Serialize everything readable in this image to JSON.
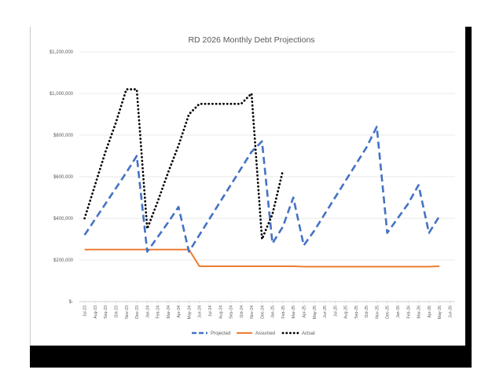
{
  "chart_data": {
    "type": "line",
    "title": "RD 2026 Monthly Debt Projections",
    "xlabel": "",
    "ylabel": "",
    "ylim": [
      0,
      1200000
    ],
    "y_ticks": [
      0,
      200000,
      400000,
      600000,
      800000,
      1000000,
      1200000
    ],
    "y_tick_labels": [
      "$-",
      "$200,000",
      "$400,000",
      "$600,000",
      "$800,000",
      "$1,000,000",
      "$1,200,000"
    ],
    "grid": true,
    "legend_position": "bottom",
    "categories": [
      "Jul-23",
      "Aug-23",
      "Sep-23",
      "Oct-23",
      "Nov-23",
      "Dec-23",
      "Jan-24",
      "Feb-24",
      "Mar-24",
      "Apr-24",
      "May-24",
      "Jun-24",
      "Jul-24",
      "Aug-24",
      "Sep-24",
      "Oct-24",
      "Nov-24",
      "Dec-24",
      "Jan-25",
      "Feb-25",
      "Mar-25",
      "Apr-25",
      "May-25",
      "Jun-25",
      "Jul-25",
      "Aug-25",
      "Sep-25",
      "Oct-25",
      "Nov-25",
      "Dec-25",
      "Jan-26",
      "Feb-26",
      "Mar-26",
      "Apr-26",
      "May-26",
      "Jun-26"
    ],
    "series": [
      {
        "name": "Projected",
        "color": "#4472c4",
        "style": "dashed",
        "values": [
          320000,
          395000,
          470000,
          545000,
          620000,
          700000,
          240000,
          310000,
          380000,
          455000,
          240000,
          320000,
          400000,
          480000,
          560000,
          640000,
          720000,
          770000,
          280000,
          360000,
          500000,
          270000,
          340000,
          420000,
          500000,
          580000,
          660000,
          740000,
          840000,
          330000,
          400000,
          470000,
          560000,
          330000,
          410000,
          null
        ]
      },
      {
        "name": "Assumed",
        "color": "#ed7d31",
        "style": "solid",
        "values": [
          250000,
          250000,
          250000,
          250000,
          250000,
          250000,
          250000,
          250000,
          250000,
          250000,
          250000,
          170000,
          170000,
          170000,
          170000,
          170000,
          170000,
          170000,
          170000,
          170000,
          170000,
          168000,
          168000,
          168000,
          168000,
          168000,
          168000,
          168000,
          168000,
          168000,
          168000,
          168000,
          168000,
          168000,
          170000,
          null
        ]
      },
      {
        "name": "Actual",
        "color": "#000000",
        "style": "dotted",
        "values": [
          400000,
          560000,
          720000,
          860000,
          1020000,
          1020000,
          350000,
          480000,
          620000,
          750000,
          900000,
          950000,
          950000,
          950000,
          950000,
          950000,
          1000000,
          300000,
          420000,
          630000,
          null,
          null,
          null,
          null,
          null,
          null,
          null,
          null,
          null,
          null,
          null,
          null,
          null,
          null,
          null,
          null
        ]
      }
    ]
  }
}
